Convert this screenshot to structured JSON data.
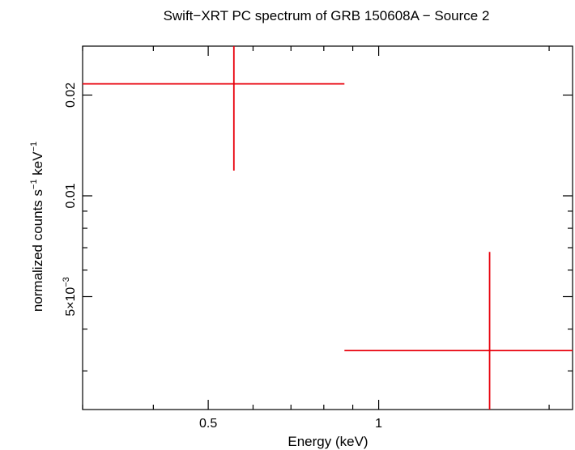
{
  "chart_data": {
    "type": "scatter",
    "title": "Swift−XRT PC spectrum of GRB 150608A − Source 2",
    "xlabel": "Energy (keV)",
    "ylabel_main": "normalized counts s",
    "ylabel_sup1": "−1",
    "ylabel_mid": " keV",
    "ylabel_sup2": "−1",
    "xscale": "log",
    "yscale": "log",
    "xlim": [
      0.3,
      2.2
    ],
    "ylim": [
      0.0023,
      0.028
    ],
    "x_major_ticks": [
      {
        "value": 0.5,
        "label": "0.5"
      },
      {
        "value": 1,
        "label": "1"
      }
    ],
    "x_minor_ticks": [
      0.3,
      0.4,
      0.6,
      0.7,
      0.8,
      0.9,
      2
    ],
    "y_major_ticks": [
      {
        "value": 0.005,
        "label_base": "5×10",
        "label_sup": "−3"
      },
      {
        "value": 0.01,
        "label": "0.01"
      },
      {
        "value": 0.02,
        "label": "0.02"
      }
    ],
    "y_minor_ticks": [
      0.003,
      0.004,
      0.006,
      0.007,
      0.008,
      0.009
    ],
    "series": [
      {
        "color": "#e8000b",
        "points": [
          {
            "x": 0.555,
            "xlo": 0.3,
            "xhi": 0.87,
            "y": 0.0216,
            "ylo": 0.0119,
            "yhi": 0.0295
          },
          {
            "x": 1.57,
            "xlo": 0.87,
            "xhi": 2.2,
            "y": 0.00345,
            "ylo": 0.0022,
            "yhi": 0.0068
          }
        ]
      }
    ]
  }
}
